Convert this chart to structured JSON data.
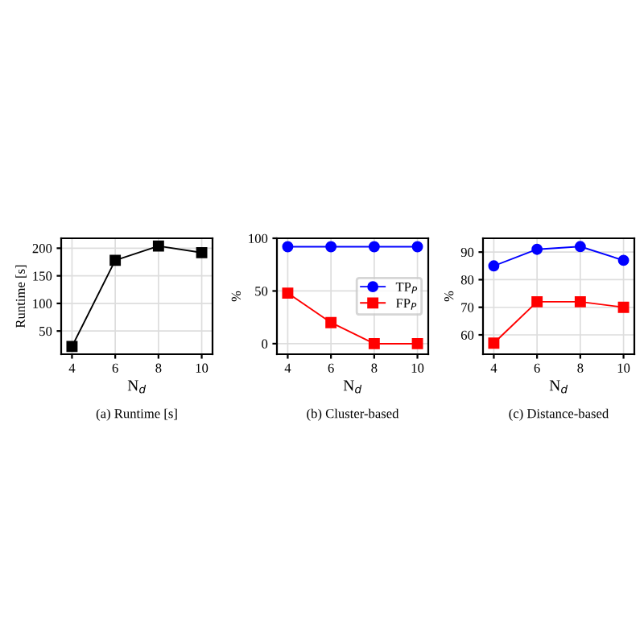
{
  "chart_data": [
    {
      "type": "line",
      "title": "(a) Runtime [s]",
      "xlabel": "N$_{d}$",
      "ylabel": "Runtime [s]",
      "x": [
        4,
        6,
        8,
        10
      ],
      "xlim": [
        3.5,
        10.5
      ],
      "xticks": [
        4,
        6,
        8,
        10
      ],
      "ylim": [
        8,
        218
      ],
      "yticks": [
        50,
        100,
        150,
        200
      ],
      "grid": true,
      "legend": false,
      "series": [
        {
          "color": "#000000",
          "marker": "square",
          "values": [
            22,
            178,
            204,
            192
          ]
        }
      ]
    },
    {
      "type": "line",
      "title": "(b) Cluster-based",
      "xlabel": "N$_{d}$",
      "ylabel": "%",
      "x": [
        4,
        6,
        8,
        10
      ],
      "xlim": [
        3.5,
        10.5
      ],
      "xticks": [
        4,
        6,
        8,
        10
      ],
      "ylim": [
        -10,
        100
      ],
      "yticks": [
        0,
        50,
        100
      ],
      "grid": true,
      "legend": "right",
      "series": [
        {
          "name": "TP$_{P}$",
          "color": "#0000ff",
          "marker": "circle",
          "values": [
            92,
            92,
            92,
            92
          ]
        },
        {
          "name": "FP$_{P}$",
          "color": "#ff0000",
          "marker": "square",
          "values": [
            48,
            20,
            0,
            0
          ]
        }
      ]
    },
    {
      "type": "line",
      "title": "(c) Distance-based",
      "xlabel": "N$_{d}$",
      "ylabel": "%",
      "x": [
        4,
        6,
        8,
        10
      ],
      "xlim": [
        3.5,
        10.5
      ],
      "xticks": [
        4,
        6,
        8,
        10
      ],
      "ylim": [
        53,
        95
      ],
      "yticks": [
        60,
        70,
        80,
        90
      ],
      "grid": true,
      "legend": false,
      "series": [
        {
          "color": "#0000ff",
          "marker": "circle",
          "values": [
            85,
            91,
            92,
            87
          ]
        },
        {
          "color": "#ff0000",
          "marker": "square",
          "values": [
            57,
            72,
            72,
            70
          ]
        }
      ]
    }
  ]
}
